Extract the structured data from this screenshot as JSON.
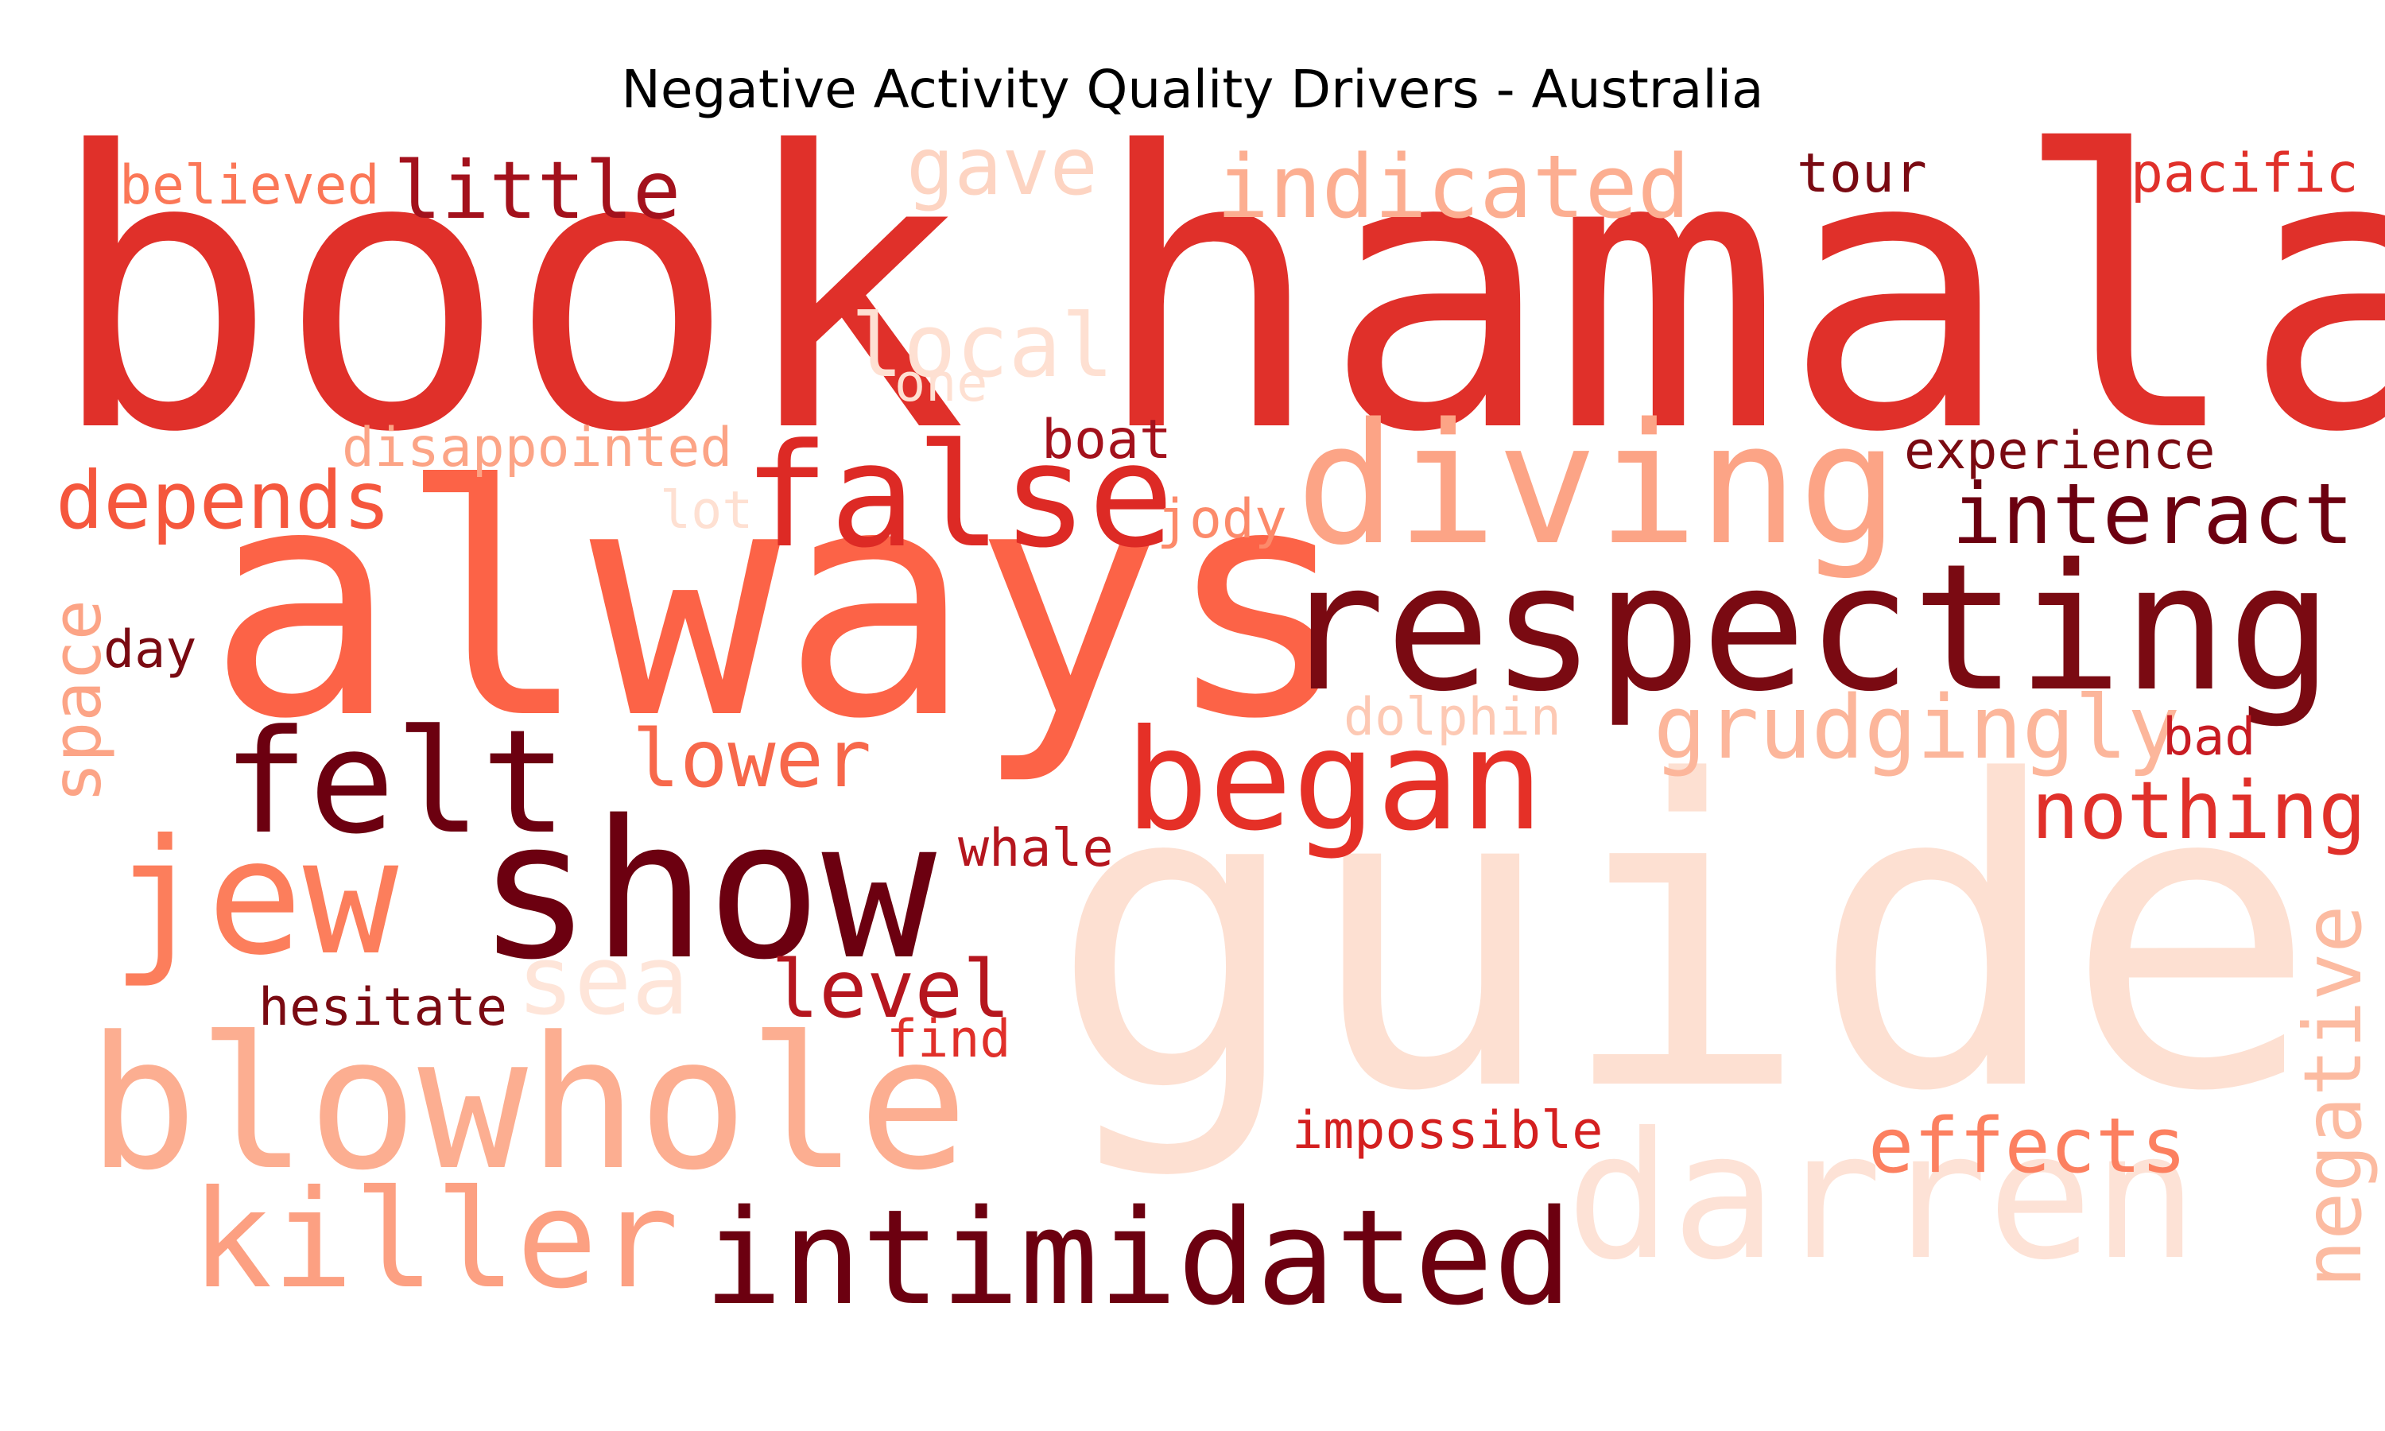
{
  "title": "Negative Activity Quality Drivers - Australia",
  "palette": "Reds",
  "words": [
    {
      "text": "book",
      "color": "#e0302a",
      "weight": 1.0
    },
    {
      "text": "hamala",
      "color": "#e0302a",
      "weight": 1.0
    },
    {
      "text": "guide",
      "color": "#fde0d2",
      "weight": 0.95
    },
    {
      "text": "always",
      "color": "#fc6347",
      "weight": 0.9
    },
    {
      "text": "respecting",
      "color": "#7a0a12",
      "weight": 0.6
    },
    {
      "text": "diving",
      "color": "#fca486",
      "weight": 0.5
    },
    {
      "text": "show",
      "color": "#6c0010",
      "weight": 0.5
    },
    {
      "text": "blowhole",
      "color": "#fcae91",
      "weight": 0.5
    },
    {
      "text": "darren",
      "color": "#fde2d6",
      "weight": 0.5
    },
    {
      "text": "false",
      "color": "#dd2a25",
      "weight": 0.45
    },
    {
      "text": "jew",
      "color": "#fc7e5c",
      "weight": 0.45
    },
    {
      "text": "felt",
      "color": "#6c0010",
      "weight": 0.4
    },
    {
      "text": "began",
      "color": "#e53027",
      "weight": 0.4
    },
    {
      "text": "killer",
      "color": "#fca082",
      "weight": 0.4
    },
    {
      "text": "intimidated",
      "color": "#6c0010",
      "weight": 0.4
    },
    {
      "text": "little",
      "color": "#a3111c",
      "weight": 0.3
    },
    {
      "text": "indicated",
      "color": "#fcae91",
      "weight": 0.3
    },
    {
      "text": "depends",
      "color": "#f5573d",
      "weight": 0.3
    },
    {
      "text": "interact",
      "color": "#6c0010",
      "weight": 0.3
    },
    {
      "text": "gave",
      "color": "#fdd4c2",
      "weight": 0.25
    },
    {
      "text": "local",
      "color": "#fee0d2",
      "weight": 0.25
    },
    {
      "text": "lower",
      "color": "#f7684b",
      "weight": 0.25
    },
    {
      "text": "grudgingly",
      "color": "#fcb69b",
      "weight": 0.25
    },
    {
      "text": "nothing",
      "color": "#e0302a",
      "weight": 0.25
    },
    {
      "text": "sea",
      "color": "#fee5d9",
      "weight": 0.25
    },
    {
      "text": "level",
      "color": "#b5161e",
      "weight": 0.25
    },
    {
      "text": "effects",
      "color": "#fc8060",
      "weight": 0.25
    },
    {
      "text": "negative",
      "color": "#fcbba1",
      "weight": 0.25
    },
    {
      "text": "space",
      "color": "#fca486",
      "weight": 0.2
    },
    {
      "text": "believed",
      "color": "#fb7757",
      "weight": 0.15
    },
    {
      "text": "tour",
      "color": "#7a0a12",
      "weight": 0.15
    },
    {
      "text": "pacific",
      "color": "#e0302a",
      "weight": 0.15
    },
    {
      "text": "one",
      "color": "#fee0d2",
      "weight": 0.15
    },
    {
      "text": "boat",
      "color": "#a3111c",
      "weight": 0.15
    },
    {
      "text": "disappointed",
      "color": "#fca486",
      "weight": 0.15
    },
    {
      "text": "experience",
      "color": "#7a0a12",
      "weight": 0.15
    },
    {
      "text": "lot",
      "color": "#fee0d2",
      "weight": 0.15
    },
    {
      "text": "jody",
      "color": "#fc8a6a",
      "weight": 0.15
    },
    {
      "text": "day",
      "color": "#7a0a12",
      "weight": 0.15
    },
    {
      "text": "dolphin",
      "color": "#fdc9b4",
      "weight": 0.15
    },
    {
      "text": "bad",
      "color": "#c81b23",
      "weight": 0.15
    },
    {
      "text": "whale",
      "color": "#b5161e",
      "weight": 0.15
    },
    {
      "text": "hesitate",
      "color": "#7a0a12",
      "weight": 0.15
    },
    {
      "text": "find",
      "color": "#e0302a",
      "weight": 0.15
    },
    {
      "text": "impossible",
      "color": "#d42020",
      "weight": 0.15
    }
  ]
}
